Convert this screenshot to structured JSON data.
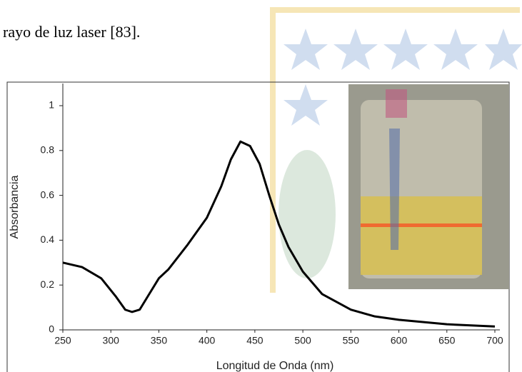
{
  "document": {
    "text": "rayo de luz laser [83]."
  },
  "chart_data": {
    "type": "line",
    "xlabel": "Longitud de Onda (nm)",
    "ylabel": "Absorbancia",
    "x": [
      250,
      270,
      290,
      305,
      315,
      322,
      330,
      340,
      350,
      360,
      380,
      400,
      415,
      425,
      435,
      445,
      455,
      465,
      475,
      485,
      500,
      520,
      550,
      575,
      600,
      650,
      700
    ],
    "series": [
      {
        "color": "#000000",
        "values": [
          0.3,
          0.28,
          0.23,
          0.15,
          0.09,
          0.08,
          0.09,
          0.16,
          0.23,
          0.27,
          0.38,
          0.5,
          0.64,
          0.76,
          0.84,
          0.82,
          0.74,
          0.6,
          0.47,
          0.37,
          0.26,
          0.16,
          0.09,
          0.06,
          0.045,
          0.025,
          0.015
        ]
      }
    ],
    "xlim": [
      250,
      700
    ],
    "ylim": [
      0,
      1.1
    ],
    "xticks": [
      250,
      300,
      350,
      400,
      450,
      500,
      550,
      600,
      650,
      700
    ],
    "yticks": [
      0,
      0.2,
      0.4,
      0.6,
      0.8,
      1
    ]
  }
}
